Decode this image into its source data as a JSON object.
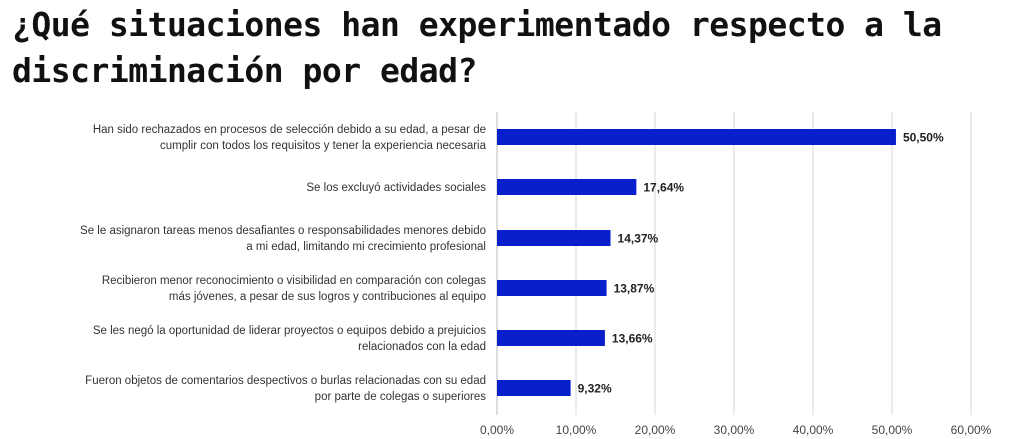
{
  "chart_data": {
    "type": "bar",
    "orientation": "horizontal",
    "title": "¿Qué situaciones han experimentado respecto a la discriminación por edad?",
    "title_lines": [
      "¿Qué situaciones han experimentado respecto a la",
      "discriminación por edad?"
    ],
    "categories": [
      [
        "Han sido rechazados en procesos de selección debido a su edad, a pesar de",
        "cumplir con todos los requisitos y tener la experiencia necesaria"
      ],
      [
        "Se los excluyó actividades sociales"
      ],
      [
        "Se le asignaron tareas menos desafiantes o responsabilidades menores debido",
        "a mi edad, limitando mi crecimiento profesional"
      ],
      [
        "Recibieron menor reconocimiento o visibilidad en comparación con colegas",
        "más jóvenes, a pesar de sus logros y contribuciones al equipo"
      ],
      [
        "Se les negó la oportunidad de liderar proyectos o equipos debido a prejuicios",
        "relacionados con la edad"
      ],
      [
        "Fueron objetos de comentarios despectivos o burlas relacionadas con su edad",
        "por parte de colegas o superiores"
      ]
    ],
    "values": [
      50.5,
      17.64,
      14.37,
      13.87,
      13.66,
      9.32
    ],
    "value_labels": [
      "50,50%",
      "17,64%",
      "14,37%",
      "13,87%",
      "13,66%",
      "9,32%"
    ],
    "xlim": [
      0,
      60
    ],
    "x_ticks": [
      0,
      10,
      20,
      30,
      40,
      50,
      60
    ],
    "x_tick_labels": [
      "0,00%",
      "10,00%",
      "20,00%",
      "30,00%",
      "40,00%",
      "50,00%",
      "60,00%"
    ],
    "grid": true,
    "bar_color": "#0a1fcc",
    "xlabel": "",
    "ylabel": ""
  }
}
